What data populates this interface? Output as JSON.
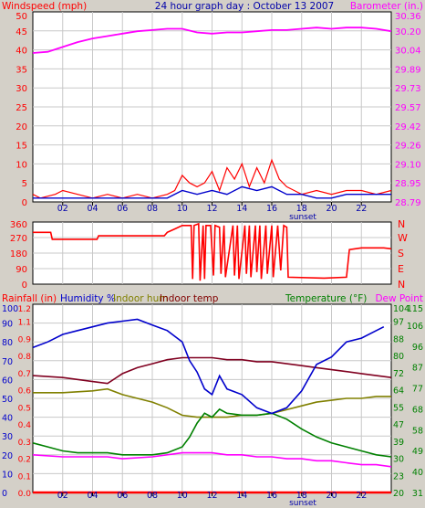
{
  "chart_data": [
    {
      "type": "line",
      "title": "24 hour graph day : October 13 2007",
      "y_left_label": "Windspeed (mph)",
      "y_right_label": "Barometer (in.)",
      "x_ticks": [
        "02",
        "04",
        "06",
        "08",
        "10",
        "12",
        "14",
        "16",
        "18",
        "20",
        "22"
      ],
      "sunset_label": "sunset",
      "x_range": [
        0,
        24
      ],
      "y_left_ticks": [
        "0",
        "5",
        "10",
        "15",
        "20",
        "25",
        "30",
        "35",
        "40",
        "45",
        "50"
      ],
      "y_left_range": [
        0,
        50
      ],
      "y_right_ticks": [
        "28.79",
        "28.95",
        "29.10",
        "29.26",
        "29.42",
        "29.57",
        "29.73",
        "29.89",
        "30.04",
        "30.20",
        "30.36"
      ],
      "y_right_range": [
        28.79,
        30.36
      ],
      "grid": true,
      "colors": {
        "windspeed": "#FF0000",
        "avg_wind": "#0000CC",
        "barometer": "#FF00FF",
        "left_axis": "#FF0000",
        "right_axis": "#FF00FF",
        "title": "#0000AA"
      },
      "series": [
        {
          "name": "Windspeed (mph)",
          "axis": "left",
          "x": [
            0,
            0.5,
            1.5,
            2.0,
            3.0,
            4.0,
            5.0,
            6.0,
            7.0,
            8.0,
            9.0,
            9.5,
            10.0,
            10.5,
            11.0,
            11.5,
            12.0,
            12.5,
            13.0,
            13.5,
            14.0,
            14.5,
            15.0,
            15.5,
            16.0,
            16.5,
            17.0,
            17.5,
            18.0,
            19.0,
            20.0,
            21.0,
            22.0,
            23.0,
            24.0
          ],
          "values": [
            2,
            1,
            2,
            3,
            2,
            1,
            2,
            1,
            2,
            1,
            2,
            3,
            7,
            5,
            4,
            5,
            8,
            3,
            9,
            6,
            10,
            4,
            9,
            5,
            11,
            6,
            4,
            3,
            2,
            3,
            2,
            3,
            3,
            2,
            3
          ]
        },
        {
          "name": "Average wind",
          "axis": "left",
          "x": [
            0,
            2,
            4,
            6,
            8,
            9,
            10,
            11,
            12,
            13,
            14,
            15,
            16,
            17,
            18,
            19,
            20,
            21,
            22,
            23,
            24
          ],
          "values": [
            1,
            1,
            1,
            1,
            1,
            1,
            3,
            2,
            3,
            2,
            4,
            3,
            4,
            2,
            2,
            1,
            1,
            2,
            2,
            2,
            2
          ]
        },
        {
          "name": "Barometer (in.)",
          "axis": "right",
          "x": [
            0,
            1,
            2,
            3,
            4,
            5,
            6,
            7,
            8,
            9,
            10,
            11,
            12,
            13,
            14,
            15,
            16,
            17,
            18,
            19,
            20,
            21,
            22,
            23,
            24
          ],
          "values": [
            30.02,
            30.03,
            30.07,
            30.11,
            30.14,
            30.16,
            30.18,
            30.2,
            30.21,
            30.22,
            30.22,
            30.19,
            30.18,
            30.19,
            30.19,
            30.2,
            30.21,
            30.21,
            30.22,
            30.23,
            30.22,
            30.23,
            30.23,
            30.22,
            30.2
          ]
        }
      ]
    },
    {
      "type": "line",
      "y_left_ticks": [
        "360",
        "270",
        "180",
        "90",
        "0"
      ],
      "y_left_range": [
        0,
        360
      ],
      "y_right_ticks": [
        "N",
        "W",
        "S",
        "E",
        "N"
      ],
      "x_range": [
        0,
        24
      ],
      "grid": true,
      "series": [
        {
          "name": "Wind direction",
          "axis": "left",
          "x": [
            0,
            1.2,
            1.3,
            4.3,
            4.4,
            8.8,
            9.0,
            9.5,
            10.0,
            10.6,
            10.7,
            10.8,
            11.1,
            11.2,
            11.4,
            11.5,
            11.6,
            11.9,
            12.1,
            12.2,
            12.5,
            12.6,
            12.8,
            12.9,
            13.4,
            13.5,
            13.7,
            13.8,
            14.2,
            14.3,
            14.5,
            14.6,
            14.9,
            15.0,
            15.2,
            15.3,
            15.6,
            15.7,
            16.0,
            16.1,
            16.4,
            16.6,
            16.8,
            17.0,
            17.1,
            19.5,
            21.0,
            21.2,
            22.0,
            23.5,
            24.0
          ],
          "values": [
            300,
            300,
            260,
            260,
            280,
            280,
            300,
            320,
            340,
            340,
            30,
            340,
            350,
            20,
            340,
            30,
            340,
            340,
            50,
            340,
            330,
            60,
            340,
            40,
            340,
            50,
            340,
            30,
            340,
            60,
            340,
            40,
            340,
            70,
            340,
            30,
            340,
            60,
            340,
            40,
            340,
            80,
            340,
            330,
            40,
            35,
            40,
            200,
            210,
            210,
            205
          ]
        }
      ]
    },
    {
      "type": "line",
      "y_labels": [
        "Rainfall (in)",
        "Humidity %",
        "Indoor hum",
        "Indoor temp",
        "Temperature (°F)",
        "Dew Point"
      ],
      "x_ticks": [
        "02",
        "04",
        "06",
        "08",
        "10",
        "12",
        "14",
        "16",
        "18",
        "20",
        "22"
      ],
      "sunset_label": "sunset",
      "x_range": [
        0,
        24
      ],
      "rain_ticks": [
        "0.0",
        "0.1",
        "0.2",
        "0.3",
        "0.4",
        "0.5",
        "0.6",
        "0.7",
        "0.8",
        "0.9",
        "1.1",
        "1.2"
      ],
      "humidity_ticks": [
        "0",
        "10",
        "20",
        "30",
        "40",
        "50",
        "60",
        "70",
        "80",
        "90",
        "100"
      ],
      "humidity_range": [
        0,
        100
      ],
      "temp_ticks_a": [
        "20",
        "23",
        "30",
        "39",
        "47",
        "55",
        "64",
        "72",
        "80",
        "88",
        "97",
        "104"
      ],
      "temp_ticks_b": [
        "31",
        "40",
        "49",
        "58",
        "68",
        "77",
        "87",
        "96",
        "106",
        "115"
      ],
      "temp_range": [
        20,
        115
      ],
      "grid": true,
      "series": [
        {
          "name": "Humidity %",
          "axis": "humidity",
          "x": [
            0,
            1,
            2,
            3,
            4,
            5,
            6,
            7,
            8,
            9,
            10,
            10.5,
            11,
            11.5,
            12,
            12.5,
            13,
            14,
            15,
            16,
            17,
            18,
            19,
            20,
            21,
            22,
            23,
            23.5
          ],
          "values": [
            77,
            80,
            84,
            86,
            88,
            90,
            91,
            92,
            89,
            86,
            80,
            70,
            64,
            55,
            52,
            62,
            55,
            52,
            45,
            42,
            45,
            54,
            68,
            72,
            80,
            82,
            86,
            88
          ]
        },
        {
          "name": "Indoor hum",
          "axis": "humidity",
          "x": [
            0,
            2,
            4,
            5,
            6,
            7,
            8,
            9,
            10,
            11,
            12,
            13,
            14,
            15,
            16,
            17,
            18,
            19,
            20,
            21,
            22,
            23,
            24
          ],
          "values": [
            53,
            53,
            54,
            55,
            52,
            50,
            48,
            45,
            41,
            40,
            40,
            40,
            41,
            41,
            42,
            44,
            46,
            48,
            49,
            50,
            50,
            51,
            51
          ]
        },
        {
          "name": "Indoor temp",
          "axis": "temp",
          "x": [
            0,
            2,
            4,
            5,
            6,
            7,
            8,
            9,
            10,
            11,
            12,
            13,
            14,
            15,
            16,
            17,
            18,
            19,
            20,
            21,
            22,
            23,
            24
          ],
          "values": [
            79,
            78,
            76,
            75,
            80,
            83,
            85,
            87,
            88,
            88,
            88,
            87,
            87,
            86,
            86,
            85,
            84,
            83,
            82,
            81,
            80,
            79,
            78
          ]
        },
        {
          "name": "Temperature (°F)",
          "axis": "temp",
          "x": [
            0,
            1,
            2,
            3,
            4,
            5,
            6,
            7,
            8,
            9,
            10,
            10.5,
            11,
            11.5,
            12,
            12.5,
            13,
            14,
            15,
            16,
            17,
            18,
            19,
            20,
            21,
            22,
            23,
            24
          ],
          "values": [
            45,
            43,
            41,
            40,
            40,
            40,
            39,
            39,
            39,
            40,
            43,
            48,
            55,
            60,
            58,
            62,
            60,
            59,
            59,
            60,
            57,
            52,
            48,
            45,
            43,
            41,
            39,
            38
          ]
        },
        {
          "name": "Dew Point",
          "axis": "temp",
          "x": [
            0,
            2,
            4,
            5,
            6,
            8,
            10,
            11,
            12,
            13,
            14,
            15,
            16,
            17,
            18,
            19,
            20,
            21,
            22,
            23,
            24
          ],
          "values": [
            39,
            38,
            38,
            38,
            37,
            38,
            40,
            40,
            40,
            39,
            39,
            38,
            38,
            37,
            37,
            36,
            36,
            35,
            34,
            34,
            33
          ]
        },
        {
          "name": "Rainfall (in)",
          "axis": "rain",
          "x": [
            0,
            24
          ],
          "values": [
            0,
            0
          ]
        }
      ]
    }
  ]
}
